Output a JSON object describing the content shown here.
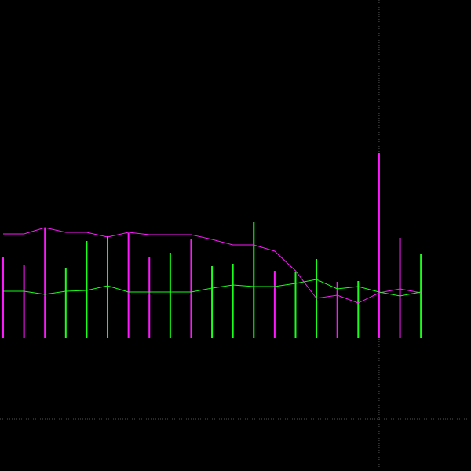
{
  "chart_data": {
    "type": "bar_line",
    "background": "#000000",
    "x": [
      0,
      1,
      2,
      3,
      4,
      5,
      6,
      7,
      8,
      9,
      10,
      11,
      12,
      13,
      14,
      15,
      16,
      17,
      18,
      19,
      20
    ],
    "xlim": [
      -0.15,
      22.4
    ],
    "ylim": [
      -170,
      430
    ],
    "bars": {
      "values": [
        102,
        93,
        140,
        89,
        123,
        129,
        133,
        103,
        108,
        125,
        91,
        94,
        147,
        85,
        84,
        100,
        71,
        72,
        235,
        127,
        107
      ],
      "colors": [
        "#ff19ff",
        "#ff19ff",
        "#ff19ff",
        "#19ff19",
        "#19ff19",
        "#19ff19",
        "#ff19ff",
        "#ff19ff",
        "#19ff19",
        "#ff19ff",
        "#19ff19",
        "#19ff19",
        "#19ff19",
        "#ff19ff",
        "#19ff19",
        "#19ff19",
        "#ff19ff",
        "#19ff19",
        "#ff19ff",
        "#ff19ff",
        "#19ff19"
      ]
    },
    "series": [
      {
        "color": "#ff19ff",
        "values": [
          132,
          132,
          140,
          134,
          134,
          128,
          134,
          131,
          131,
          131,
          125,
          118,
          118,
          110,
          85,
          50,
          54,
          44,
          57,
          62,
          57
        ]
      },
      {
        "color": "#19ff19",
        "values": [
          59,
          59,
          55,
          59,
          60,
          66,
          58,
          58,
          58,
          58,
          63,
          67,
          65,
          65,
          69,
          74,
          62,
          65,
          58,
          53,
          58
        ]
      }
    ],
    "crosshair": {
      "x": 18,
      "y": -104,
      "color": "#555555"
    }
  }
}
